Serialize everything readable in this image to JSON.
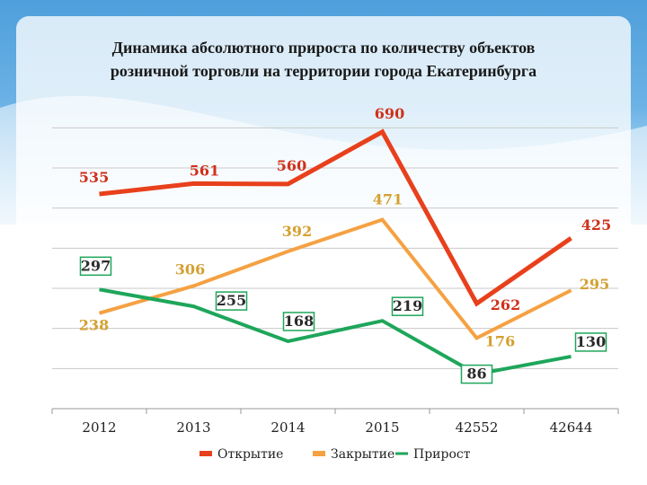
{
  "chart_data": {
    "type": "line",
    "title_line1": "Динамика абсолютного прироста по количеству объектов",
    "title_line2": "розничной торговли  на территории города Екатеринбурга",
    "categories": [
      "2012",
      "2013",
      "2014",
      "2015",
      "42552",
      "42644"
    ],
    "ylim": [
      0,
      750
    ],
    "xlabel": "",
    "ylabel": "",
    "grid": true,
    "legend_position": "bottom",
    "series": [
      {
        "name": "Открытие",
        "color": "#e8401c",
        "values": [
          535,
          561,
          560,
          690,
          262,
          425
        ],
        "labels": [
          "535",
          "561",
          "560",
          "690",
          "262",
          "425"
        ]
      },
      {
        "name": "Закрытие",
        "color": "#f5a142",
        "values": [
          238,
          306,
          392,
          471,
          176,
          295
        ],
        "labels": [
          "238",
          "306",
          "392",
          "471",
          "176",
          "295"
        ]
      },
      {
        "name": "Прирост",
        "color": "#1ea65a",
        "values": [
          297,
          255,
          168,
          219,
          86,
          130
        ],
        "labels": [
          "297",
          "255",
          "168",
          "219",
          "86",
          "130"
        ]
      }
    ]
  },
  "colors": {
    "background_blue": "#5aa8e0",
    "grid": "#c8c8c8",
    "axis": "#9a9a9a"
  }
}
